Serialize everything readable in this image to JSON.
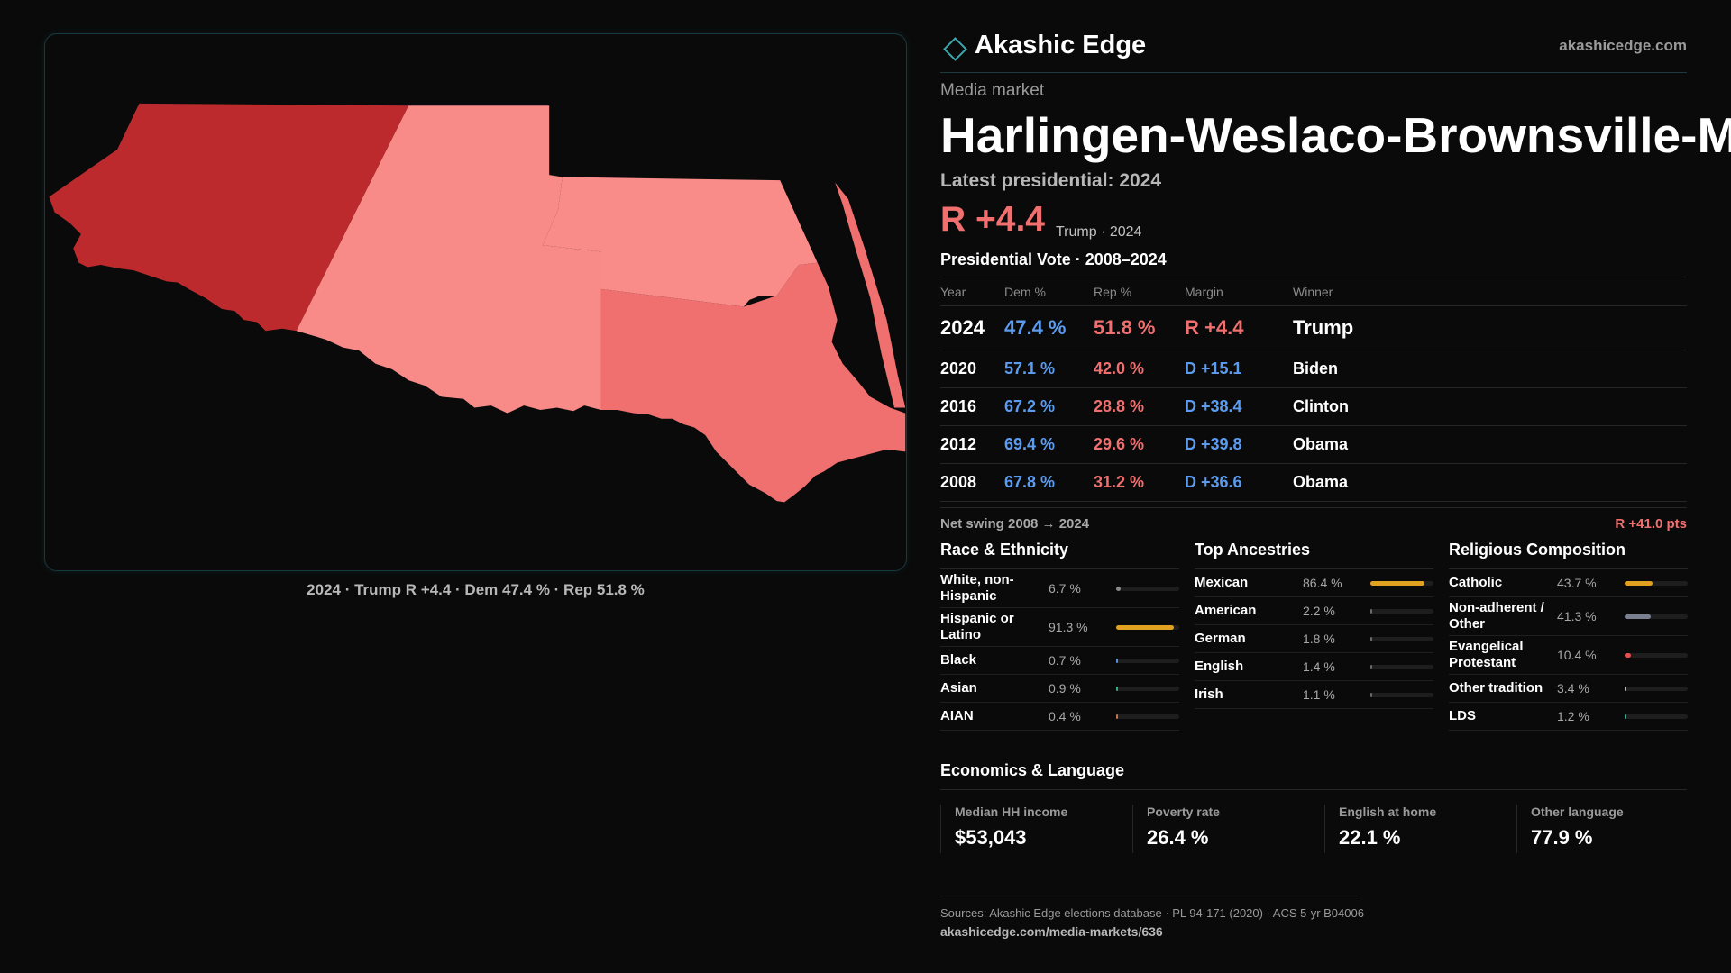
{
  "header": {
    "brand": "Akashic Edge",
    "site": "akashicedge.com"
  },
  "map": {
    "caption": "2024 · Trump R +4.4 · Dem 47.4 % · Rep 51.8 %"
  },
  "market": {
    "kicker": "Media market",
    "name": "Harlingen-Weslaco-Brownsville-McAllen",
    "latest": "Latest presidential: 2024",
    "margin": "R +4.4",
    "margin_note": "Trump · 2024"
  },
  "vote_table": {
    "title": "Presidential Vote · 2008–2024",
    "columns": [
      "Year",
      "Dem %",
      "Rep %",
      "Margin",
      "Winner"
    ],
    "rows": [
      [
        "2024",
        "47.4 %",
        "51.8 %",
        "R +4.4",
        "Trump"
      ],
      [
        "2020",
        "57.1 %",
        "42.0 %",
        "D +15.1",
        "Biden"
      ],
      [
        "2016",
        "67.2 %",
        "28.8 %",
        "D +38.4",
        "Clinton"
      ],
      [
        "2012",
        "69.4 %",
        "29.6 %",
        "D +39.8",
        "Obama"
      ],
      [
        "2008",
        "67.8 %",
        "31.2 %",
        "D +36.6",
        "Obama"
      ]
    ]
  },
  "swing": {
    "label": "Net swing 2008 → 2024",
    "value": "R +41.0 pts"
  },
  "demographics": [
    {
      "title": "Race & Ethnicity",
      "items": [
        {
          "label": "White, non-Hispanic",
          "share": {
            "value": 6.7,
            "label": "6.7 %"
          },
          "color": "#8a8a8a"
        },
        {
          "label": "Hispanic or Latino",
          "share": {
            "value": 91.3,
            "label": "91.3 %"
          },
          "color": "#e0a020"
        },
        {
          "label": "Black",
          "share": {
            "value": 0.7,
            "label": "0.7 %"
          },
          "color": "#5a8fd8"
        },
        {
          "label": "Asian",
          "share": {
            "value": 0.9,
            "label": "0.9 %"
          },
          "color": "#3aaa80"
        },
        {
          "label": "AIAN",
          "share": {
            "value": 0.4,
            "label": "0.4 %"
          },
          "color": "#c87050"
        }
      ]
    },
    {
      "title": "Top Ancestries",
      "items": [
        {
          "label": "Mexican",
          "share": {
            "value": 86.4,
            "label": "86.4 %"
          },
          "color": "#e0a020"
        },
        {
          "label": "American",
          "share": {
            "value": 2.2,
            "label": "2.2 %"
          },
          "color": "#6a6a6a"
        },
        {
          "label": "German",
          "share": {
            "value": 1.8,
            "label": "1.8 %"
          },
          "color": "#6a6a6a"
        },
        {
          "label": "English",
          "share": {
            "value": 1.4,
            "label": "1.4 %"
          },
          "color": "#6a6a6a"
        },
        {
          "label": "Irish",
          "share": {
            "value": 1.1,
            "label": "1.1 %"
          },
          "color": "#6a6a6a"
        }
      ]
    },
    {
      "title": "Religious Composition",
      "items": [
        {
          "label": "Catholic",
          "share": {
            "value": 43.7,
            "label": "43.7 %"
          },
          "color": "#e0a020"
        },
        {
          "label": "Non-adherent / Other",
          "share": {
            "value": 41.3,
            "label": "41.3 %"
          },
          "color": "#7a8090"
        },
        {
          "label": "Evangelical Protestant",
          "share": {
            "value": 10.4,
            "label": "10.4 %"
          },
          "color": "#e05050"
        },
        {
          "label": "Other tradition",
          "share": {
            "value": 3.4,
            "label": "3.4 %"
          },
          "color": "#bbbbbb"
        },
        {
          "label": "LDS",
          "share": {
            "value": 1.2,
            "label": "1.2 %"
          },
          "color": "#30b090"
        }
      ]
    }
  ],
  "economics": {
    "title": "Economics & Language",
    "stats": [
      {
        "label": "Median HH income",
        "value": "$53,043"
      },
      {
        "label": "Poverty rate",
        "value": "26.4 %"
      },
      {
        "label": "English at home",
        "value": "22.1 %"
      },
      {
        "label": "Other language",
        "value": "77.9 %"
      }
    ]
  },
  "footer": {
    "sources": "Sources: Akashic Edge elections database · PL 94-171 (2020) · ACS 5-yr B04006",
    "url": "akashicedge.com/media-markets/636"
  }
}
